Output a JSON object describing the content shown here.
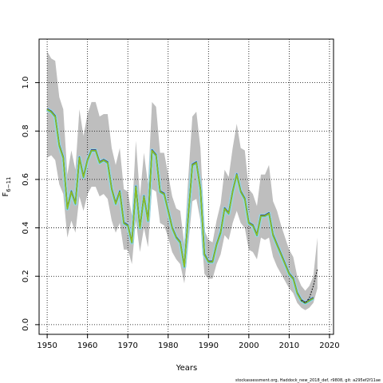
{
  "chart_data": {
    "type": "line",
    "xlabel": "Years",
    "ylabel": "F",
    "ylabel_subscript": "6−11",
    "footer": "stockassessment.org, Haddock_new_2018_def, r9808, git: a295ef2f11ae",
    "xlim": [
      1948,
      2021
    ],
    "ylim": [
      -0.04,
      1.18
    ],
    "xticks": [
      1950,
      1960,
      1970,
      1980,
      1990,
      2000,
      2010,
      2020
    ],
    "yticks": [
      0.0,
      0.2,
      0.4,
      0.6,
      0.8,
      1.0
    ],
    "ytick_labels": [
      "0.0",
      "0.2",
      "0.4",
      "0.6",
      "0.8",
      "1.0"
    ],
    "grid": true,
    "colors": {
      "band": "#bebebe",
      "inner_band": "#9ad6e0",
      "series_main": "#8fbf1f",
      "series_dark": "#0000a0",
      "series_teal": "#2aa5a5",
      "series_grey": "#606060"
    },
    "x": [
      1950,
      1951,
      1952,
      1953,
      1954,
      1955,
      1956,
      1957,
      1958,
      1959,
      1960,
      1961,
      1962,
      1963,
      1964,
      1965,
      1966,
      1967,
      1968,
      1969,
      1970,
      1971,
      1972,
      1973,
      1974,
      1975,
      1976,
      1977,
      1978,
      1979,
      1980,
      1981,
      1982,
      1983,
      1984,
      1985,
      1986,
      1987,
      1988,
      1989,
      1990,
      1991,
      1992,
      1993,
      1994,
      1995,
      1996,
      1997,
      1998,
      1999,
      2000,
      2001,
      2002,
      2003,
      2004,
      2005,
      2006,
      2007,
      2008,
      2009,
      2010,
      2011,
      2012,
      2013,
      2014,
      2015,
      2016,
      2017
    ],
    "series": [
      {
        "values": [
          0.89,
          0.88,
          0.86,
          0.74,
          0.69,
          0.48,
          0.55,
          0.5,
          0.69,
          0.61,
          0.68,
          0.72,
          0.72,
          0.67,
          0.68,
          0.67,
          0.56,
          0.5,
          0.55,
          0.42,
          0.41,
          0.34,
          0.57,
          0.4,
          0.53,
          0.43,
          0.72,
          0.7,
          0.55,
          0.54,
          0.47,
          0.4,
          0.36,
          0.34,
          0.24,
          0.45,
          0.66,
          0.67,
          0.56,
          0.29,
          0.26,
          0.26,
          0.33,
          0.38,
          0.48,
          0.46,
          0.55,
          0.62,
          0.55,
          0.52,
          0.42,
          0.41,
          0.37,
          0.45,
          0.45,
          0.46,
          0.37,
          0.33,
          0.29,
          0.25,
          0.21,
          0.19,
          0.13,
          0.1,
          0.09,
          0.1,
          0.11,
          null
        ]
      },
      {
        "values": [
          null,
          null,
          null,
          null,
          null,
          null,
          null,
          null,
          null,
          null,
          null,
          null,
          null,
          null,
          null,
          null,
          null,
          null,
          null,
          null,
          null,
          null,
          null,
          null,
          null,
          null,
          null,
          null,
          null,
          null,
          null,
          null,
          null,
          null,
          null,
          null,
          null,
          null,
          null,
          null,
          null,
          null,
          null,
          null,
          null,
          null,
          null,
          null,
          null,
          null,
          null,
          null,
          null,
          null,
          null,
          null,
          null,
          null,
          null,
          null,
          null,
          null,
          null,
          0.1,
          0.09,
          0.11,
          0.16,
          0.23
        ]
      }
    ],
    "upper": [
      1.13,
      1.1,
      1.09,
      0.94,
      0.89,
      0.62,
      0.72,
      0.64,
      0.89,
      0.78,
      0.87,
      0.92,
      0.92,
      0.86,
      0.87,
      0.87,
      0.73,
      0.66,
      0.73,
      0.56,
      0.55,
      0.45,
      0.76,
      0.53,
      0.71,
      0.58,
      0.92,
      0.9,
      0.71,
      0.71,
      0.62,
      0.53,
      0.48,
      0.47,
      0.33,
      0.61,
      0.86,
      0.88,
      0.73,
      0.39,
      0.35,
      0.34,
      0.43,
      0.5,
      0.64,
      0.61,
      0.73,
      0.83,
      0.73,
      0.72,
      0.56,
      0.54,
      0.49,
      0.62,
      0.62,
      0.66,
      0.51,
      0.47,
      0.41,
      0.36,
      0.31,
      0.28,
      0.2,
      0.16,
      0.14,
      0.16,
      0.2,
      0.36
    ],
    "lower": [
      0.69,
      0.7,
      0.68,
      0.58,
      0.54,
      0.36,
      0.43,
      0.38,
      0.53,
      0.47,
      0.54,
      0.57,
      0.57,
      0.53,
      0.54,
      0.52,
      0.43,
      0.38,
      0.42,
      0.31,
      0.31,
      0.25,
      0.43,
      0.3,
      0.4,
      0.32,
      0.56,
      0.55,
      0.42,
      0.41,
      0.36,
      0.3,
      0.27,
      0.25,
      0.17,
      0.33,
      0.51,
      0.52,
      0.43,
      0.21,
      0.19,
      0.19,
      0.25,
      0.29,
      0.37,
      0.35,
      0.42,
      0.47,
      0.42,
      0.4,
      0.31,
      0.3,
      0.27,
      0.36,
      0.35,
      0.36,
      0.28,
      0.24,
      0.21,
      0.18,
      0.15,
      0.13,
      0.09,
      0.07,
      0.06,
      0.07,
      0.09,
      0.15
    ]
  }
}
